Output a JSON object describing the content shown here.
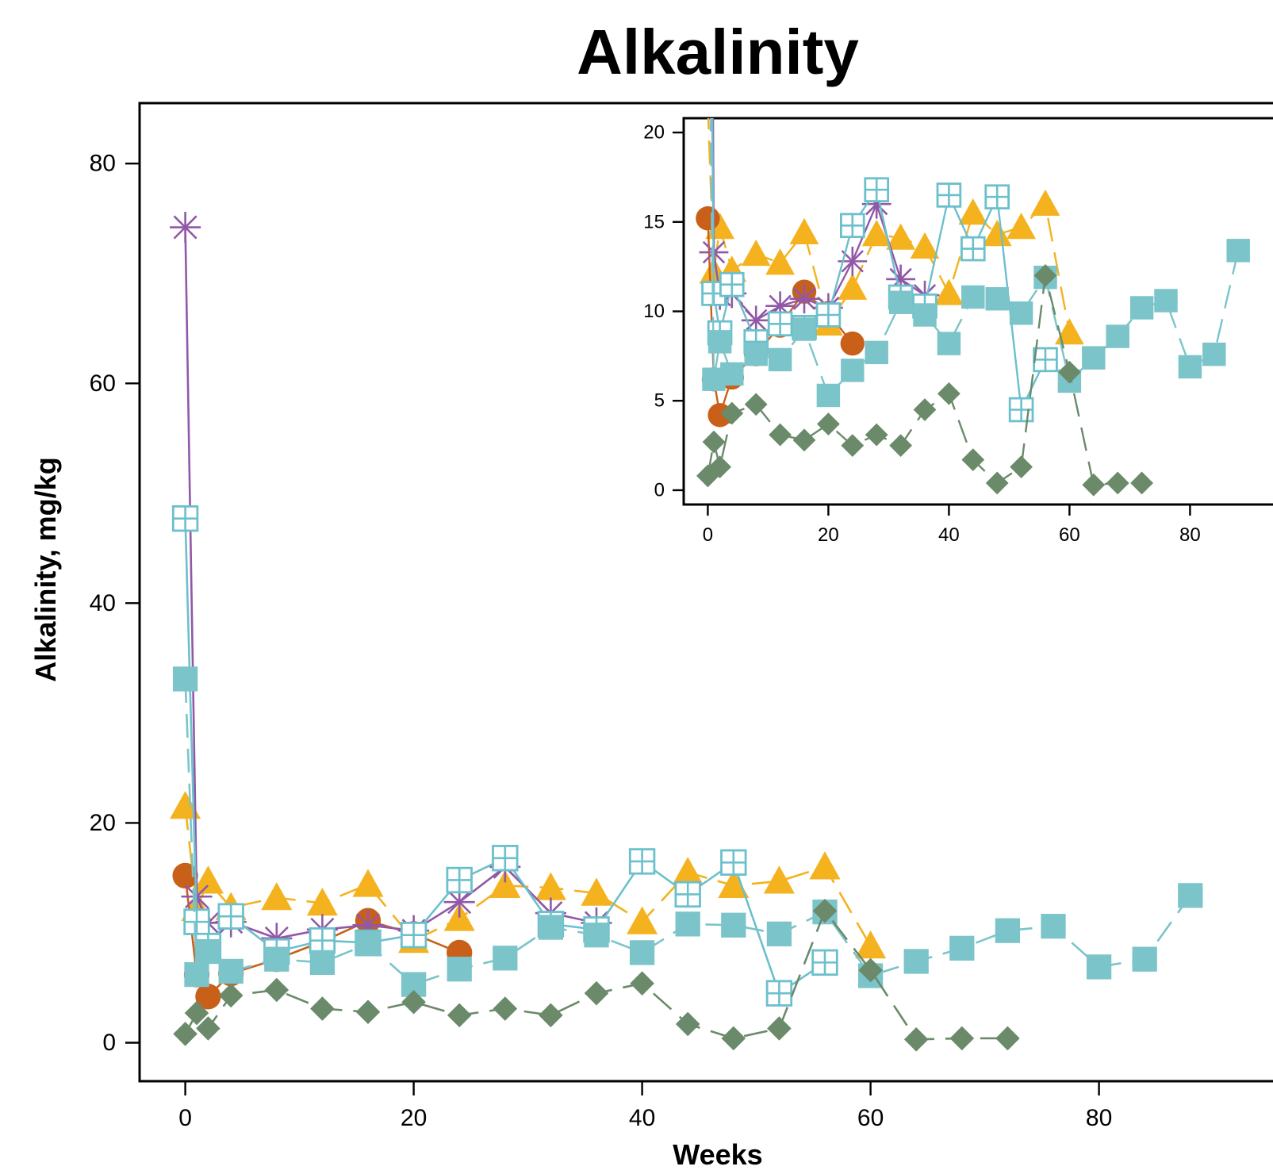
{
  "chart_data": {
    "type": "line",
    "title": "Alkalinity",
    "xlabel": "Weeks",
    "ylabel": "Alkalinity, mg/kg",
    "grid": false,
    "legend": "none",
    "xlim": [
      -4,
      96
    ],
    "ylim": [
      -3.5,
      85.5
    ],
    "x_ticks": [
      "0",
      "20",
      "40",
      "60",
      "80"
    ],
    "y_ticks": [
      "0",
      "20",
      "40",
      "60",
      "80"
    ],
    "inset": {
      "xlim": [
        -4,
        96
      ],
      "ylim": [
        -0.8,
        20.8
      ],
      "x_ticks": [
        "0",
        "20",
        "40",
        "60",
        "80"
      ],
      "y_ticks": [
        "0",
        "5",
        "10",
        "15",
        "20"
      ]
    },
    "series": [
      {
        "color": "#F4B21E",
        "marker": "triangle",
        "line": "dash",
        "points": [
          [
            0,
            21.5
          ],
          [
            1,
            12.2
          ],
          [
            2,
            14.7
          ],
          [
            4,
            12.3
          ],
          [
            8,
            13.2
          ],
          [
            12,
            12.7
          ],
          [
            16,
            14.4
          ],
          [
            20,
            9.3
          ],
          [
            24,
            11.3
          ],
          [
            28,
            14.3
          ],
          [
            32,
            14.1
          ],
          [
            36,
            13.6
          ],
          [
            40,
            11.0
          ],
          [
            44,
            15.5
          ],
          [
            48,
            14.3
          ],
          [
            52,
            14.7
          ],
          [
            56,
            16.0
          ],
          [
            60,
            8.8
          ]
        ]
      },
      {
        "color": "#C8601A",
        "marker": "circle",
        "line": "solid",
        "points": [
          [
            0,
            15.2
          ],
          [
            1,
            6.2
          ],
          [
            2,
            4.2
          ],
          [
            4,
            6.3
          ],
          [
            8,
            7.6
          ],
          [
            12,
            9.2
          ],
          [
            16,
            11.1
          ],
          [
            20,
            9.9
          ],
          [
            24,
            8.2
          ]
        ]
      },
      {
        "color": "#9158A8",
        "marker": "asterisk",
        "line": "solid",
        "points": [
          [
            0,
            74.2
          ],
          [
            1,
            13.3
          ],
          [
            2,
            10.9
          ],
          [
            4,
            11.0
          ],
          [
            8,
            9.5
          ],
          [
            12,
            10.3
          ],
          [
            16,
            10.7
          ],
          [
            20,
            10.2
          ],
          [
            24,
            12.8
          ],
          [
            28,
            16.0
          ],
          [
            32,
            11.8
          ],
          [
            36,
            10.9
          ]
        ]
      },
      {
        "color": "#6BC0CC",
        "marker": "square-plus",
        "line": "solid",
        "points": [
          [
            0,
            47.7
          ],
          [
            1,
            11.0
          ],
          [
            2,
            8.8
          ],
          [
            4,
            11.5
          ],
          [
            8,
            8.3
          ],
          [
            12,
            9.3
          ],
          [
            16,
            9.1
          ],
          [
            20,
            9.8
          ],
          [
            24,
            14.8
          ],
          [
            28,
            16.8
          ],
          [
            32,
            10.8
          ],
          [
            36,
            10.3
          ],
          [
            40,
            16.5
          ],
          [
            44,
            13.5
          ],
          [
            48,
            16.4
          ],
          [
            52,
            4.5
          ],
          [
            56,
            7.3
          ]
        ]
      },
      {
        "color": "#7BC4CA",
        "marker": "square",
        "line": "dash",
        "points": [
          [
            0,
            33.1
          ],
          [
            1,
            6.2
          ],
          [
            2,
            8.3
          ],
          [
            4,
            6.5
          ],
          [
            8,
            7.6
          ],
          [
            12,
            7.3
          ],
          [
            16,
            9.0
          ],
          [
            20,
            5.3
          ],
          [
            24,
            6.7
          ],
          [
            28,
            7.7
          ],
          [
            32,
            10.5
          ],
          [
            36,
            9.8
          ],
          [
            40,
            8.2
          ],
          [
            44,
            10.8
          ],
          [
            48,
            10.7
          ],
          [
            52,
            9.9
          ],
          [
            56,
            11.9
          ],
          [
            60,
            6.1
          ],
          [
            64,
            7.4
          ],
          [
            68,
            8.6
          ],
          [
            72,
            10.2
          ],
          [
            76,
            10.6
          ],
          [
            80,
            6.9
          ],
          [
            84,
            7.6
          ],
          [
            88,
            13.4
          ]
        ]
      },
      {
        "color": "#6A8A6A",
        "marker": "diamond",
        "line": "dash",
        "points": [
          [
            0,
            0.8
          ],
          [
            1,
            2.7
          ],
          [
            2,
            1.3
          ],
          [
            4,
            4.3
          ],
          [
            8,
            4.8
          ],
          [
            12,
            3.1
          ],
          [
            16,
            2.8
          ],
          [
            20,
            3.7
          ],
          [
            24,
            2.5
          ],
          [
            28,
            3.1
          ],
          [
            32,
            2.5
          ],
          [
            36,
            4.5
          ],
          [
            40,
            5.4
          ],
          [
            44,
            1.7
          ],
          [
            48,
            0.4
          ],
          [
            52,
            1.3
          ],
          [
            56,
            12.0
          ],
          [
            60,
            6.6
          ],
          [
            64,
            0.3
          ],
          [
            68,
            0.4
          ],
          [
            72,
            0.4
          ]
        ]
      }
    ]
  }
}
